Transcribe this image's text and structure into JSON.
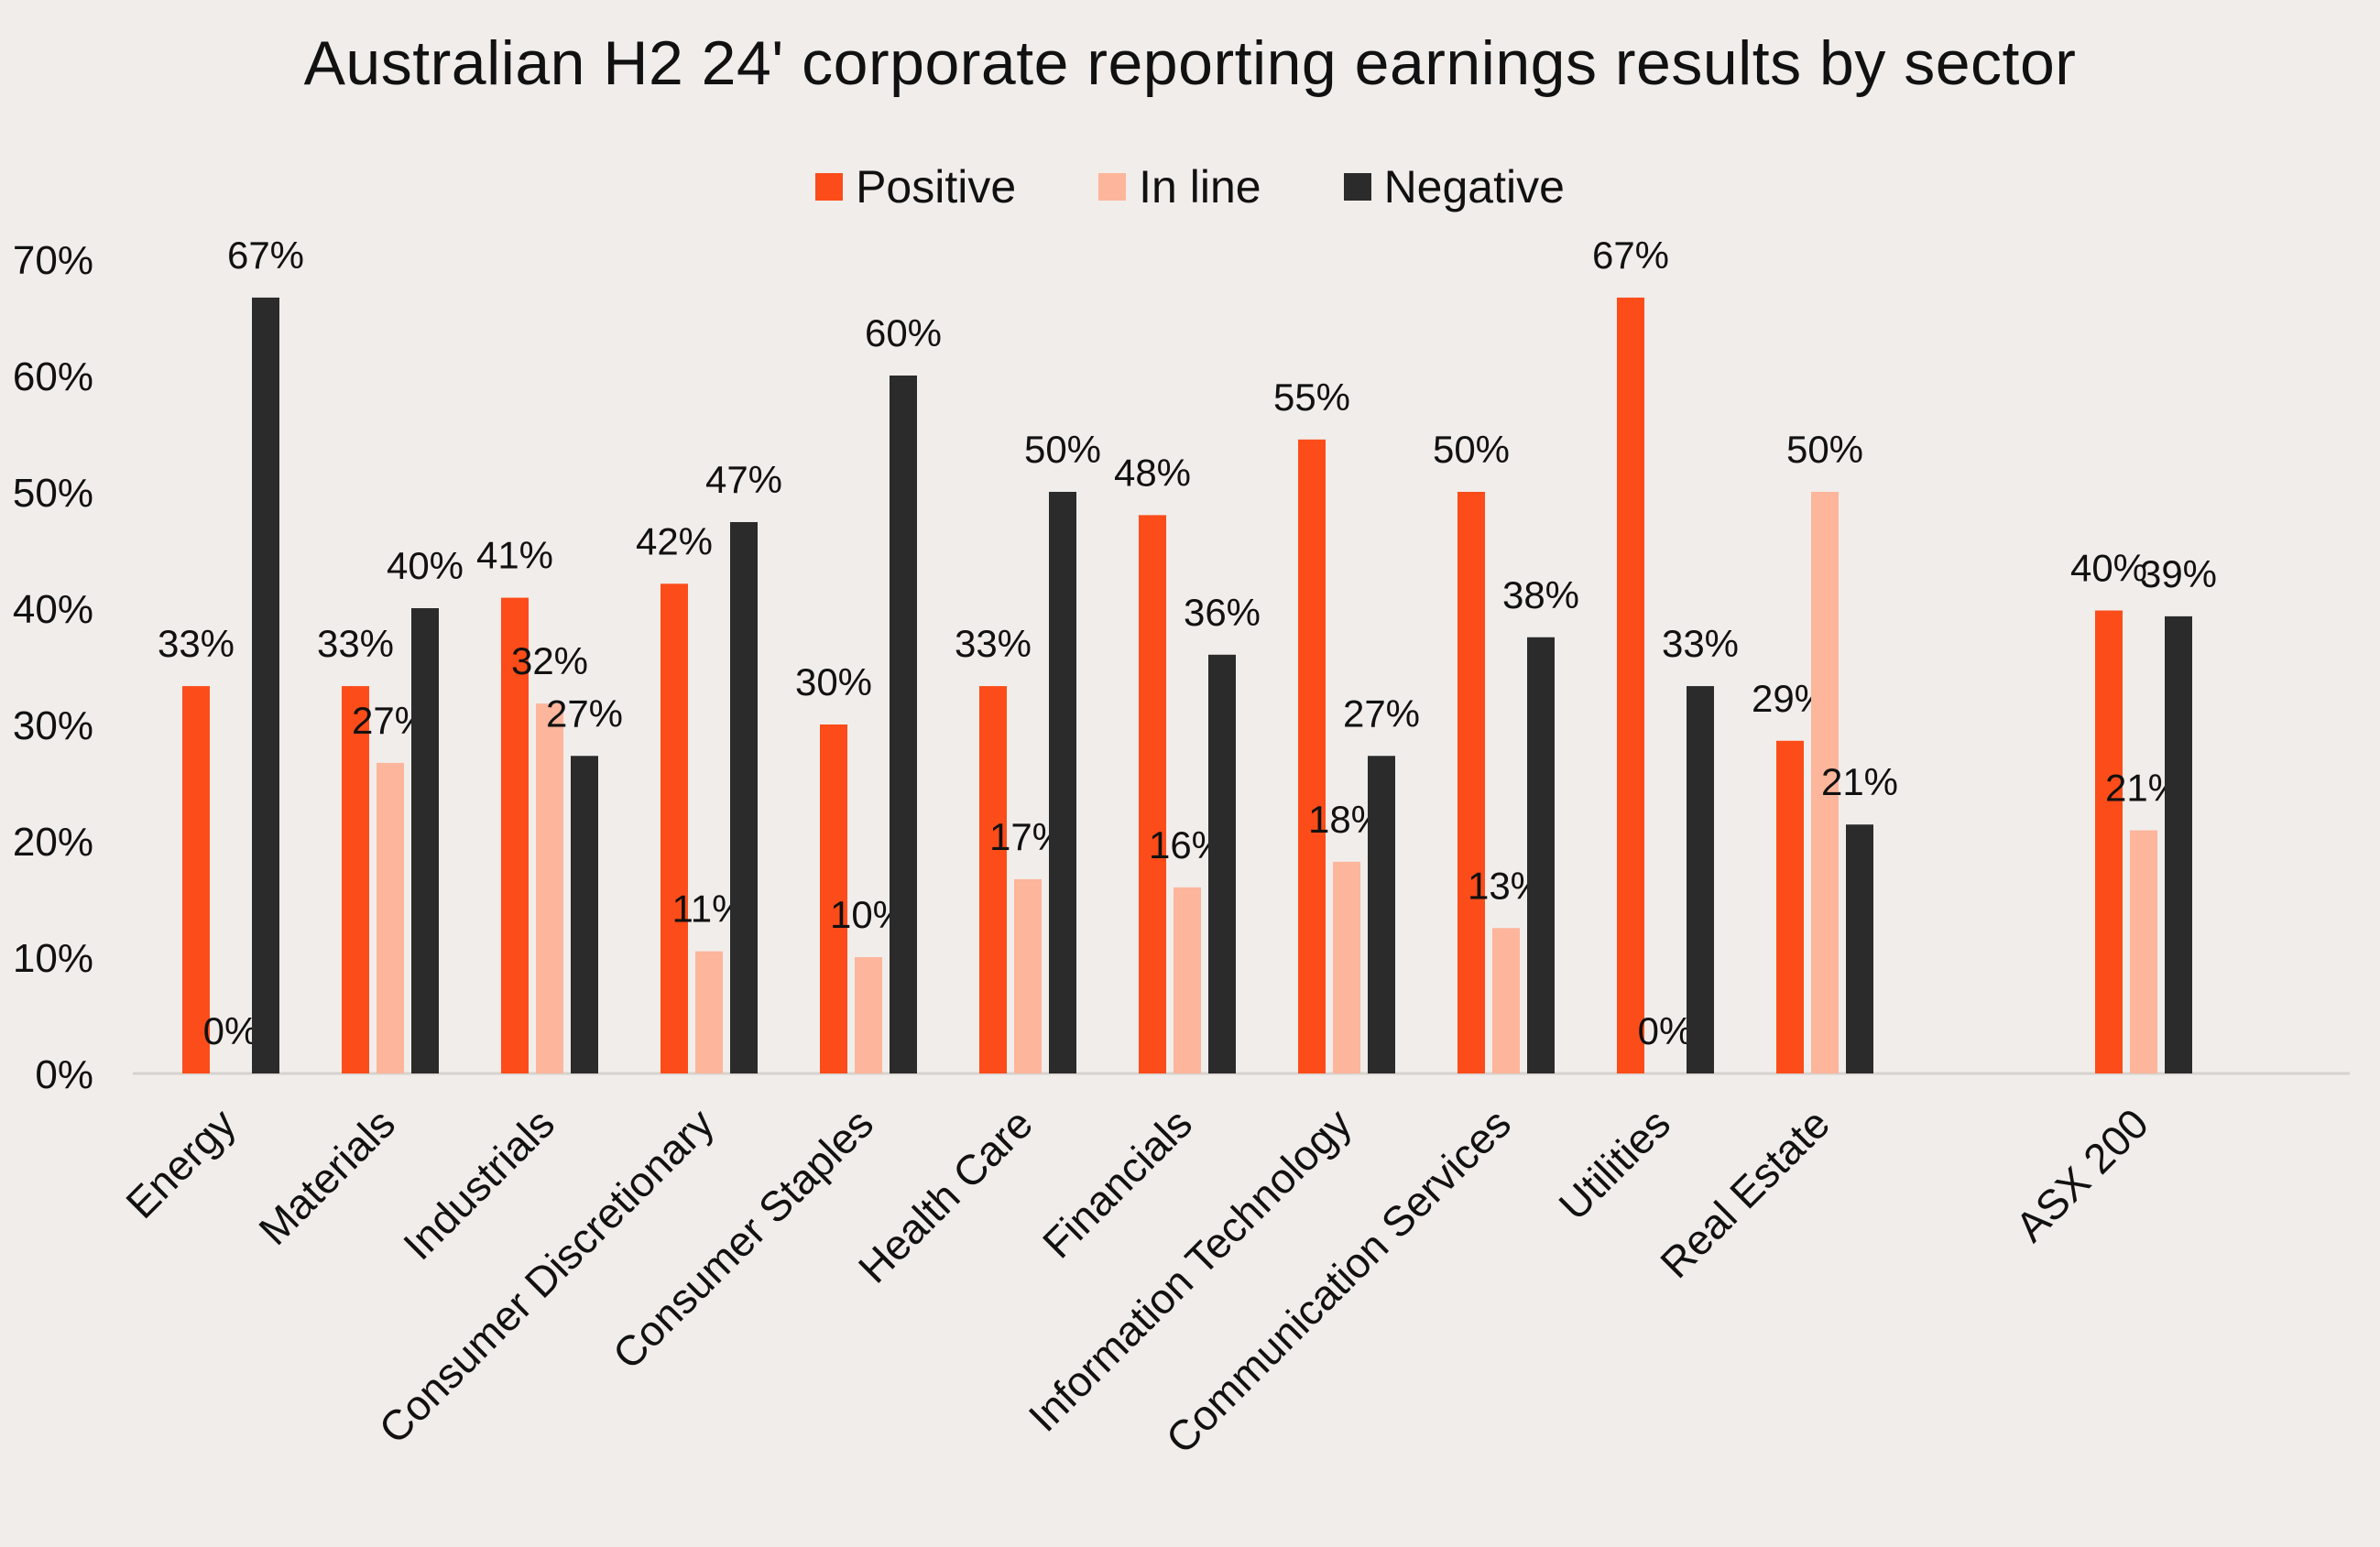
{
  "chart_data": {
    "type": "bar",
    "title": "Australian H2 24' corporate reporting earnings results by sector",
    "xlabel": "",
    "ylabel": "",
    "ylim": [
      0,
      70
    ],
    "yticks": [
      "0%",
      "10%",
      "20%",
      "30%",
      "40%",
      "50%",
      "60%",
      "70%"
    ],
    "ytick_values": [
      0,
      10,
      20,
      30,
      40,
      50,
      60,
      70
    ],
    "legend_position": "top-center",
    "grid": false,
    "categories": [
      "Energy",
      "Materials",
      "Industrials",
      "Consumer Discretionary",
      "Consumer Staples",
      "Health Care",
      "Financials",
      "Information Technology",
      "Communication Services",
      "Utilities",
      "Real Estate",
      "ASX 200"
    ],
    "series": [
      {
        "name": "Positive",
        "color": "#fc4c1a",
        "values": [
          33.3,
          33.3,
          40.9,
          42.1,
          30.0,
          33.3,
          48.0,
          54.5,
          50.0,
          66.7,
          28.6,
          39.8
        ],
        "labels": [
          "33%",
          "33%",
          "41%",
          "42%",
          "30%",
          "33%",
          "48%",
          "55%",
          "50%",
          "67%",
          "29%",
          "40%"
        ]
      },
      {
        "name": "In line",
        "color": "#fdb59b",
        "values": [
          0,
          26.7,
          31.8,
          10.5,
          10.0,
          16.7,
          16.0,
          18.2,
          12.5,
          0,
          50.0,
          20.9
        ],
        "labels": [
          "0%",
          "27%",
          "32%",
          "11%",
          "10%",
          "17%",
          "16%",
          "18%",
          "13%",
          "0%",
          "50%",
          "21%"
        ]
      },
      {
        "name": "Negative",
        "color": "#2b2b2b",
        "values": [
          66.7,
          40.0,
          27.3,
          47.4,
          60.0,
          50.0,
          36.0,
          27.3,
          37.5,
          33.3,
          21.4,
          39.3
        ],
        "labels": [
          "67%",
          "40%",
          "27%",
          "47%",
          "60%",
          "50%",
          "36%",
          "27%",
          "38%",
          "33%",
          "21%",
          "39%"
        ]
      }
    ]
  }
}
